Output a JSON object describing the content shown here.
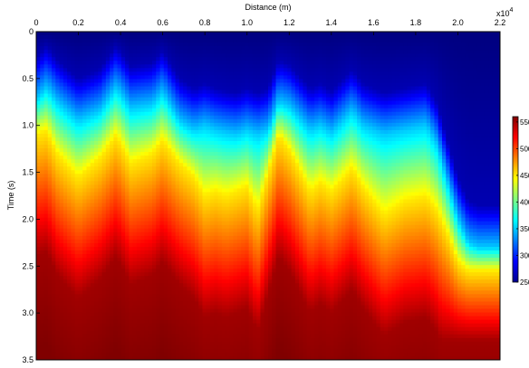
{
  "chart_data": {
    "type": "heatmap",
    "title": "",
    "xlabel": "Distance (m)",
    "ylabel": "Time (s)",
    "x_exponent_label": "x10",
    "x_exponent_power": "4",
    "xlim": [
      0,
      2.2
    ],
    "ylim": [
      0,
      3.5
    ],
    "y_reversed": true,
    "x_axis_position": "top",
    "x_ticks": [
      0,
      0.2,
      0.4,
      0.6,
      0.8,
      1.0,
      1.2,
      1.4,
      1.6,
      1.8,
      2.0,
      2.2
    ],
    "x_tick_labels": [
      "0",
      "0.2",
      "0.4",
      "0.6",
      "0.8",
      "1.0",
      "1.2",
      "1.4",
      "1.6",
      "1.8",
      "2.0",
      "2.2"
    ],
    "y_ticks": [
      0,
      0.5,
      1.0,
      1.5,
      2.0,
      2.5,
      3.0,
      3.5
    ],
    "y_tick_labels": [
      "0",
      "0.5",
      "1.0",
      "1.5",
      "2.0",
      "2.5",
      "3.0",
      "3.5"
    ],
    "colormap": "jet",
    "colorbar": {
      "min": 2500,
      "max": 5600,
      "ticks": [
        2500,
        3000,
        3500,
        4000,
        4500,
        5000,
        5500
      ],
      "tick_labels": [
        "2500",
        "3000",
        "3500",
        "4000",
        "4500",
        "5000",
        "5500"
      ],
      "position": "right"
    },
    "velocity_profiles": {
      "x": [
        0,
        0.05,
        0.1,
        0.2,
        0.3,
        0.38,
        0.45,
        0.55,
        0.6,
        0.68,
        0.75,
        0.8,
        0.85,
        0.9,
        0.95,
        1.0,
        1.05,
        1.1,
        1.15,
        1.2,
        1.3,
        1.35,
        1.4,
        1.5,
        1.55,
        1.65,
        1.75,
        1.85,
        1.9,
        1.95,
        2.0,
        2.05,
        2.1,
        2.15,
        2.2
      ],
      "t_at_3500": [
        0.72,
        0.6,
        0.75,
        0.95,
        0.85,
        0.6,
        0.82,
        0.78,
        0.65,
        0.95,
        1.05,
        1.0,
        1.05,
        1.08,
        1.1,
        1.05,
        1.1,
        1.05,
        0.75,
        0.8,
        1.05,
        1.0,
        1.08,
        0.85,
        1.0,
        1.1,
        1.05,
        1.0,
        1.2,
        1.6,
        2.0,
        2.25,
        2.3,
        2.3,
        2.3
      ],
      "t_at_4500": [
        1.1,
        1.05,
        1.3,
        1.55,
        1.35,
        1.1,
        1.4,
        1.3,
        1.15,
        1.4,
        1.55,
        1.75,
        1.7,
        1.75,
        1.7,
        1.65,
        1.9,
        1.5,
        1.1,
        1.25,
        1.7,
        1.6,
        1.7,
        1.45,
        1.65,
        1.95,
        1.8,
        1.75,
        1.9,
        2.15,
        2.45,
        2.55,
        2.55,
        2.55,
        2.55
      ]
    },
    "velocity_range": [
      2500,
      5600
    ]
  }
}
